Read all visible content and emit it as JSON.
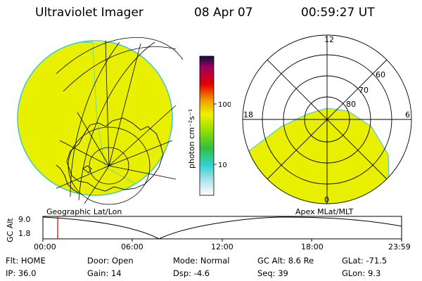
{
  "header": {
    "title": "Ultraviolet Imager",
    "date": "08 Apr 07",
    "time": "00:59:27 UT"
  },
  "colorbar": {
    "label": "photon cm⁻²s⁻¹",
    "ticks": [
      "100",
      "10"
    ]
  },
  "polar": {
    "mlt_labels": [
      "12",
      "18",
      "6",
      "0"
    ],
    "lat_labels": [
      "60",
      "70",
      "80"
    ]
  },
  "maps": {
    "left_caption": "Geographic Lat/Lon",
    "right_caption": "Apex MLat/MLT"
  },
  "altitude_plot": {
    "axis_label": "GC Alt",
    "y_ticks": [
      "9.0",
      "1.8"
    ],
    "x_ticks": [
      "00:00",
      "06:00",
      "12:00",
      "18:00",
      "23:59"
    ]
  },
  "info_panel": {
    "row1": [
      {
        "label": "Flt:",
        "value": "HOME"
      },
      {
        "label": "Door:",
        "value": "Open"
      },
      {
        "label": "Mode:",
        "value": "Normal"
      },
      {
        "label": "GC Alt:",
        "value": "8.6 Re"
      },
      {
        "label": "GLat:",
        "value": "-71.5"
      }
    ],
    "row2": [
      {
        "label": "IP:",
        "value": "36.0"
      },
      {
        "label": "Gain:",
        "value": "14"
      },
      {
        "label": "Dsp:",
        "value": "-4.6"
      },
      {
        "label": "Seq:",
        "value": "39"
      },
      {
        "label": "GLon:",
        "value": "9.3"
      }
    ]
  },
  "colors": {
    "emission": "#e8f000",
    "edge": "#40c8c8",
    "cursor": "#d00000"
  }
}
